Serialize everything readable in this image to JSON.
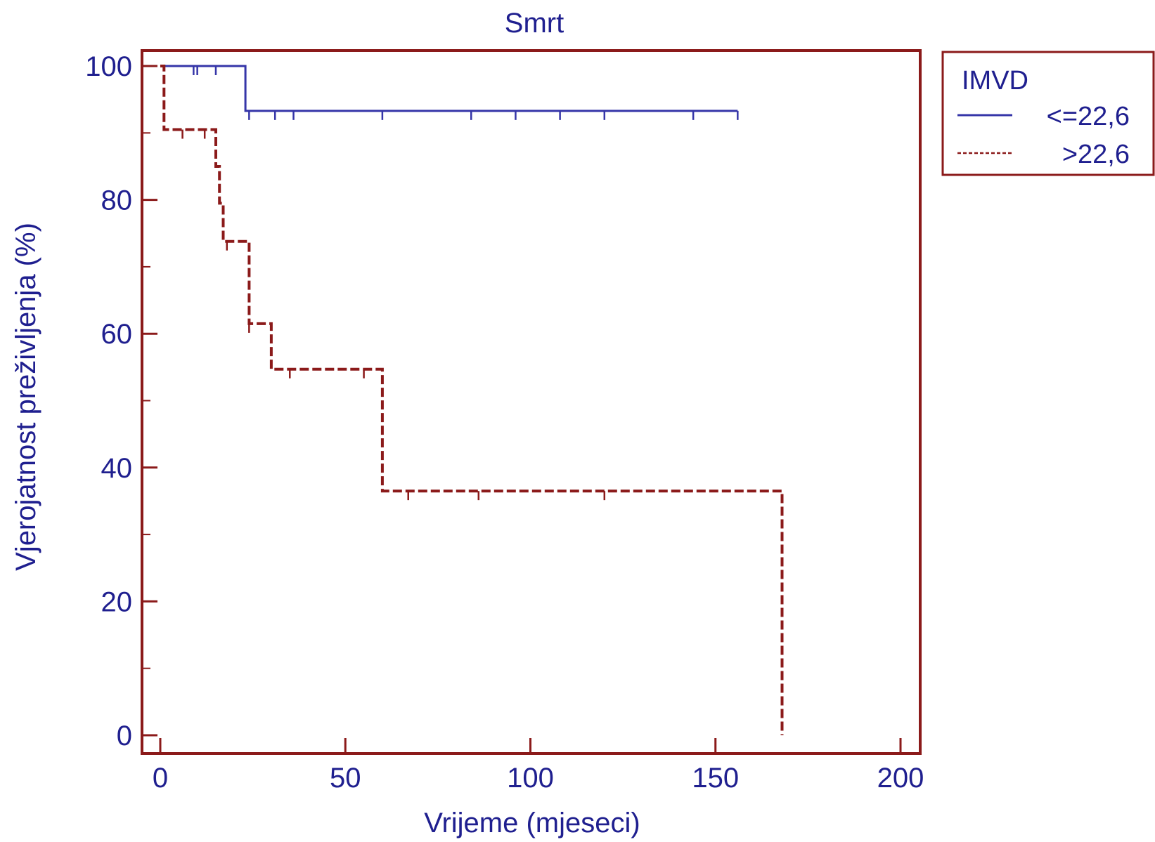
{
  "chart_data": {
    "type": "line",
    "subtype": "kaplan-meier",
    "title": "Smrt",
    "xlabel": "Vrijeme (mjeseci)",
    "ylabel": "Vjerojatnost preživljenja (%)",
    "xlim": [
      -5,
      205
    ],
    "ylim": [
      -5,
      102
    ],
    "xticks": [
      0,
      50,
      100,
      150,
      200
    ],
    "yticks": [
      0,
      20,
      40,
      60,
      80,
      100
    ],
    "grid": false,
    "legend": {
      "title": "IMVD",
      "position": "right-top"
    },
    "series": [
      {
        "name": "<=22,6",
        "color": "#3535a8",
        "style": "solid",
        "steps": [
          [
            0,
            100
          ],
          [
            23,
            100
          ],
          [
            23,
            93.3
          ],
          [
            156,
            93.3
          ]
        ],
        "censored": [
          [
            9,
            100
          ],
          [
            10,
            100
          ],
          [
            15,
            100
          ],
          [
            24,
            93.3
          ],
          [
            31,
            93.3
          ],
          [
            36,
            93.3
          ],
          [
            60,
            93.3
          ],
          [
            84,
            93.3
          ],
          [
            96,
            93.3
          ],
          [
            108,
            93.3
          ],
          [
            120,
            93.3
          ],
          [
            144,
            93.3
          ],
          [
            156,
            93.3
          ]
        ]
      },
      {
        "name": ">22,6",
        "color": "#8b1a1a",
        "style": "dashed",
        "steps": [
          [
            0,
            100
          ],
          [
            1,
            100
          ],
          [
            1,
            90.5
          ],
          [
            15,
            90.5
          ],
          [
            15,
            85
          ],
          [
            16,
            85
          ],
          [
            16,
            79.5
          ],
          [
            17,
            79.5
          ],
          [
            17,
            73.8
          ],
          [
            24,
            73.8
          ],
          [
            24,
            61.5
          ],
          [
            30,
            61.5
          ],
          [
            30,
            54.7
          ],
          [
            60,
            54.7
          ],
          [
            60,
            36.5
          ],
          [
            168,
            36.5
          ],
          [
            168,
            0
          ]
        ],
        "censored": [
          [
            6,
            90.5
          ],
          [
            12,
            90.5
          ],
          [
            18,
            73.8
          ],
          [
            24,
            61.5
          ],
          [
            35,
            54.7
          ],
          [
            55,
            54.7
          ],
          [
            67,
            36.5
          ],
          [
            86,
            36.5
          ],
          [
            120,
            36.5
          ]
        ]
      }
    ]
  }
}
